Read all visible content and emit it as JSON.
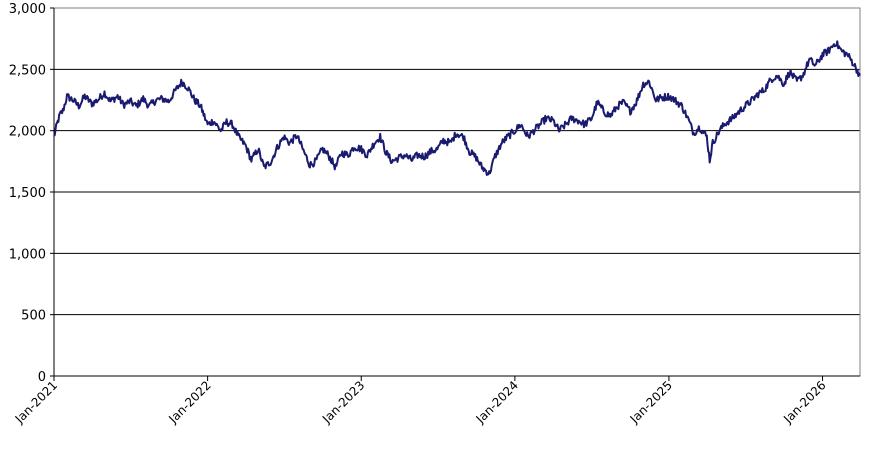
{
  "chart_data": {
    "type": "line",
    "ylim": [
      0,
      3000
    ],
    "yticks": [
      0,
      500,
      1000,
      1500,
      2000,
      2500,
      3000
    ],
    "ytick_labels": [
      "0",
      "500",
      "1,000",
      "1,500",
      "2,000",
      "2,500",
      "3,000"
    ],
    "xlim": [
      "2021-01-01",
      "2026-03-31"
    ],
    "xticks": [
      "2021-01-01",
      "2022-01-01",
      "2023-01-01",
      "2024-01-01",
      "2025-01-01",
      "2026-01-01"
    ],
    "xtick_labels": [
      "Jan-2021",
      "Jan-2022",
      "Jan-2023",
      "Jan-2024",
      "Jan-2025",
      "Jan-2026"
    ],
    "grid": "horizontal",
    "legend": "none",
    "line_color": "#1a1a6e",
    "series": [
      {
        "x": [
          "2021-01-01",
          "2021-01-08",
          "2021-01-15",
          "2021-01-22",
          "2021-02-01",
          "2021-02-15",
          "2021-03-01",
          "2021-03-15",
          "2021-04-01",
          "2021-04-15",
          "2021-05-01",
          "2021-05-15",
          "2021-06-01",
          "2021-06-15",
          "2021-07-01",
          "2021-07-15",
          "2021-08-01",
          "2021-08-15",
          "2021-09-01",
          "2021-09-15",
          "2021-10-01",
          "2021-10-15",
          "2021-11-01",
          "2021-11-15",
          "2021-12-01",
          "2021-12-15",
          "2022-01-01",
          "2022-01-15",
          "2022-02-01",
          "2022-02-15",
          "2022-03-01",
          "2022-03-15",
          "2022-04-01",
          "2022-04-15",
          "2022-05-01",
          "2022-05-15",
          "2022-06-01",
          "2022-06-15",
          "2022-07-01",
          "2022-07-15",
          "2022-08-01",
          "2022-08-15",
          "2022-09-01",
          "2022-09-15",
          "2022-10-01",
          "2022-10-15",
          "2022-11-01",
          "2022-11-15",
          "2022-12-01",
          "2022-12-15",
          "2023-01-01",
          "2023-01-15",
          "2023-02-01",
          "2023-02-15",
          "2023-03-01",
          "2023-03-15",
          "2023-04-01",
          "2023-04-15",
          "2023-05-01",
          "2023-05-15",
          "2023-06-01",
          "2023-06-15",
          "2023-07-01",
          "2023-07-15",
          "2023-08-01",
          "2023-08-15",
          "2023-09-01",
          "2023-09-15",
          "2023-10-01",
          "2023-10-15",
          "2023-11-01",
          "2023-11-15",
          "2023-12-01",
          "2023-12-15",
          "2024-01-01",
          "2024-01-15",
          "2024-02-01",
          "2024-02-15",
          "2024-03-01",
          "2024-03-15",
          "2024-04-01",
          "2024-04-15",
          "2024-05-01",
          "2024-05-15",
          "2024-06-01",
          "2024-06-15",
          "2024-07-01",
          "2024-07-15",
          "2024-08-01",
          "2024-08-15",
          "2024-09-01",
          "2024-09-15",
          "2024-10-01",
          "2024-10-15",
          "2024-11-01",
          "2024-11-15",
          "2024-12-01",
          "2024-12-15",
          "2025-01-01",
          "2025-01-15",
          "2025-02-01",
          "2025-02-15",
          "2025-03-01",
          "2025-03-15",
          "2025-04-01",
          "2025-04-08",
          "2025-04-15",
          "2025-05-01",
          "2025-05-15",
          "2025-06-01",
          "2025-06-15",
          "2025-07-01",
          "2025-07-15",
          "2025-08-01",
          "2025-08-15",
          "2025-09-01",
          "2025-09-15",
          "2025-10-01",
          "2025-10-15",
          "2025-11-01",
          "2025-11-15",
          "2025-12-01",
          "2025-12-15",
          "2026-01-01",
          "2026-01-15",
          "2026-02-01",
          "2026-02-15",
          "2026-03-01",
          "2026-03-15",
          "2026-03-31"
        ],
        "values": [
          1950,
          2050,
          2130,
          2160,
          2280,
          2250,
          2200,
          2280,
          2220,
          2250,
          2310,
          2240,
          2280,
          2210,
          2240,
          2200,
          2260,
          2200,
          2250,
          2260,
          2240,
          2320,
          2400,
          2350,
          2250,
          2200,
          2050,
          2080,
          2000,
          2070,
          2050,
          1950,
          1880,
          1760,
          1850,
          1700,
          1750,
          1860,
          1950,
          1900,
          1960,
          1850,
          1720,
          1750,
          1850,
          1800,
          1700,
          1820,
          1800,
          1870,
          1850,
          1800,
          1900,
          1950,
          1820,
          1750,
          1780,
          1800,
          1760,
          1800,
          1790,
          1830,
          1850,
          1920,
          1900,
          1980,
          1950,
          1830,
          1780,
          1700,
          1650,
          1790,
          1900,
          1950,
          2000,
          2050,
          1950,
          2000,
          2050,
          2100,
          2080,
          2000,
          2050,
          2100,
          2080,
          2050,
          2100,
          2230,
          2150,
          2120,
          2200,
          2230,
          2160,
          2230,
          2380,
          2400,
          2250,
          2270,
          2280,
          2250,
          2200,
          2100,
          1980,
          2030,
          1950,
          1760,
          1900,
          2000,
          2060,
          2100,
          2150,
          2200,
          2240,
          2300,
          2330,
          2420,
          2450,
          2380,
          2480,
          2400,
          2450,
          2580,
          2530,
          2620,
          2650,
          2720,
          2650,
          2620,
          2550,
          2450
        ]
      }
    ]
  }
}
